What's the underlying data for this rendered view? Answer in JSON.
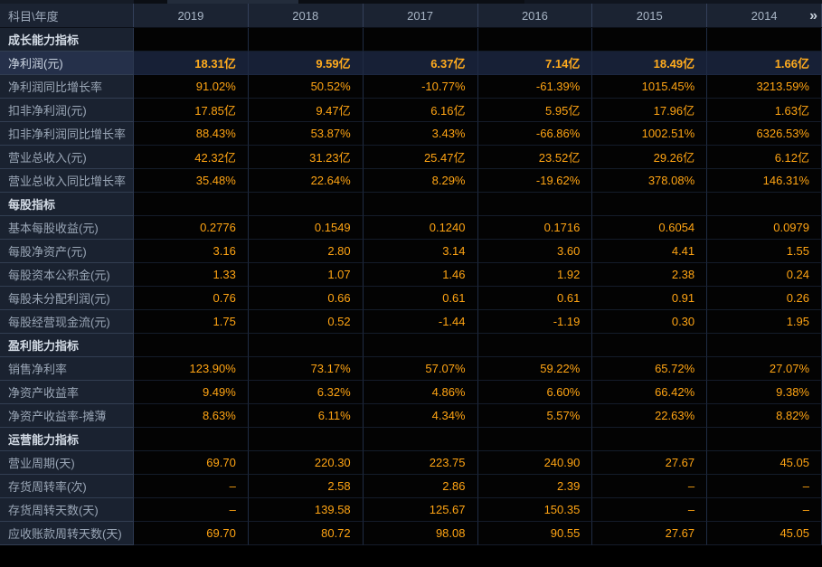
{
  "table": {
    "corner_label": "科目\\年度",
    "years": [
      "2019",
      "2018",
      "2017",
      "2016",
      "2015",
      "2014"
    ],
    "more_icon": "»",
    "rows": [
      {
        "type": "section",
        "label": "成长能力指标"
      },
      {
        "type": "data",
        "label": "净利润(元)",
        "highlighted": true,
        "values": [
          "18.31亿",
          "9.59亿",
          "6.37亿",
          "7.14亿",
          "18.49亿",
          "1.66亿"
        ]
      },
      {
        "type": "data",
        "label": "净利润同比增长率",
        "values": [
          "91.02%",
          "50.52%",
          "-10.77%",
          "-61.39%",
          "1015.45%",
          "3213.59%"
        ]
      },
      {
        "type": "data",
        "label": "扣非净利润(元)",
        "values": [
          "17.85亿",
          "9.47亿",
          "6.16亿",
          "5.95亿",
          "17.96亿",
          "1.63亿"
        ]
      },
      {
        "type": "data",
        "label": "扣非净利润同比增长率",
        "values": [
          "88.43%",
          "53.87%",
          "3.43%",
          "-66.86%",
          "1002.51%",
          "6326.53%"
        ]
      },
      {
        "type": "data",
        "label": "营业总收入(元)",
        "values": [
          "42.32亿",
          "31.23亿",
          "25.47亿",
          "23.52亿",
          "29.26亿",
          "6.12亿"
        ]
      },
      {
        "type": "data",
        "label": "营业总收入同比增长率",
        "values": [
          "35.48%",
          "22.64%",
          "8.29%",
          "-19.62%",
          "378.08%",
          "146.31%"
        ]
      },
      {
        "type": "section",
        "label": "每股指标"
      },
      {
        "type": "data",
        "label": "基本每股收益(元)",
        "values": [
          "0.2776",
          "0.1549",
          "0.1240",
          "0.1716",
          "0.6054",
          "0.0979"
        ]
      },
      {
        "type": "data",
        "label": "每股净资产(元)",
        "values": [
          "3.16",
          "2.80",
          "3.14",
          "3.60",
          "4.41",
          "1.55"
        ]
      },
      {
        "type": "data",
        "label": "每股资本公积金(元)",
        "values": [
          "1.33",
          "1.07",
          "1.46",
          "1.92",
          "2.38",
          "0.24"
        ]
      },
      {
        "type": "data",
        "label": "每股未分配利润(元)",
        "values": [
          "0.76",
          "0.66",
          "0.61",
          "0.61",
          "0.91",
          "0.26"
        ]
      },
      {
        "type": "data",
        "label": "每股经营现金流(元)",
        "values": [
          "1.75",
          "0.52",
          "-1.44",
          "-1.19",
          "0.30",
          "1.95"
        ]
      },
      {
        "type": "section",
        "label": "盈利能力指标"
      },
      {
        "type": "data",
        "label": "销售净利率",
        "values": [
          "123.90%",
          "73.17%",
          "57.07%",
          "59.22%",
          "65.72%",
          "27.07%"
        ]
      },
      {
        "type": "data",
        "label": "净资产收益率",
        "values": [
          "9.49%",
          "6.32%",
          "4.86%",
          "6.60%",
          "66.42%",
          "9.38%"
        ]
      },
      {
        "type": "data",
        "label": "净资产收益率-摊薄",
        "values": [
          "8.63%",
          "6.11%",
          "4.34%",
          "5.57%",
          "22.63%",
          "8.82%"
        ]
      },
      {
        "type": "section",
        "label": "运营能力指标"
      },
      {
        "type": "data",
        "label": "营业周期(天)",
        "values": [
          "69.70",
          "220.30",
          "223.75",
          "240.90",
          "27.67",
          "45.05"
        ]
      },
      {
        "type": "data",
        "label": "存货周转率(次)",
        "values": [
          "–",
          "2.58",
          "2.86",
          "2.39",
          "–",
          "–"
        ]
      },
      {
        "type": "data",
        "label": "存货周转天数(天)",
        "values": [
          "–",
          "139.58",
          "125.67",
          "150.35",
          "–",
          "–"
        ]
      },
      {
        "type": "data",
        "label": "应收账款周转天数(天)",
        "values": [
          "69.70",
          "80.72",
          "98.08",
          "90.55",
          "27.67",
          "45.05"
        ]
      }
    ]
  },
  "colors": {
    "value_orange": "#ffa413",
    "highlight_row_bg": "#172036",
    "label_column_bg": "#1a2230",
    "header_bg": "#1b2332",
    "data_cell_bg": "#030303",
    "header_text": "#a8b5c5",
    "label_text": "#9aa6b6",
    "section_text": "#d3dbe5"
  }
}
